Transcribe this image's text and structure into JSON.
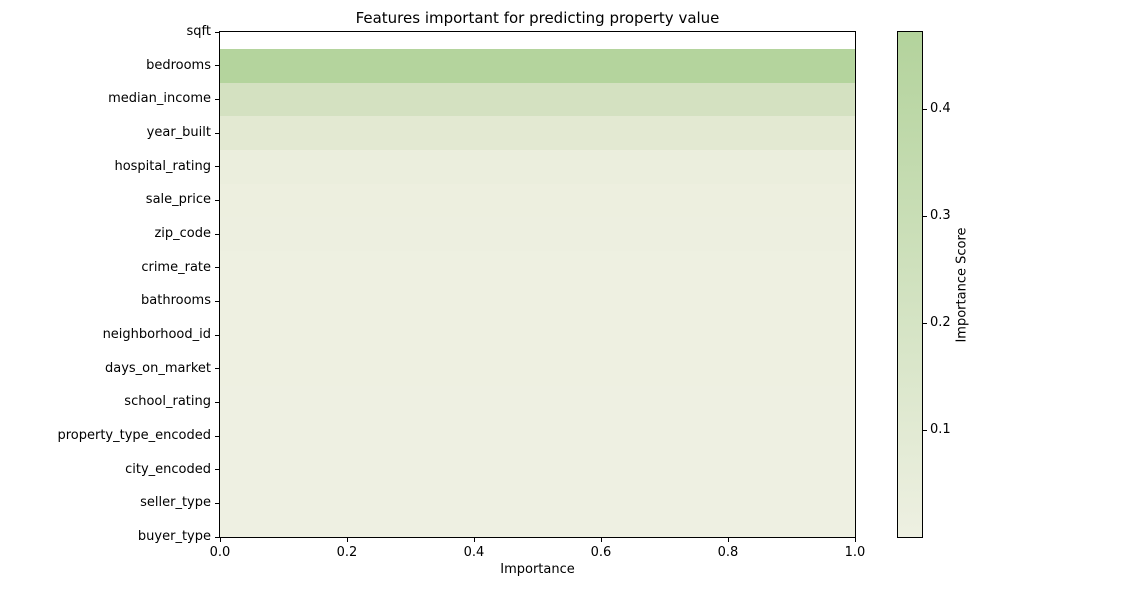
{
  "chart_data": {
    "type": "bar",
    "orientation": "horizontal",
    "title": "Features important for predicting property value",
    "xlabel": "Importance",
    "ylabel": "",
    "xlim": [
      0.0,
      1.0
    ],
    "x_ticks": [
      "0.0",
      "0.2",
      "0.4",
      "0.6",
      "0.8",
      "1.0"
    ],
    "grid": false,
    "legend": false,
    "note": "Every rendered bar spans the full x-range (0 to 1.0); feature importance is encoded by bar color. The sqft row is blank/white (no colored bar rendered).",
    "categories": [
      "sqft",
      "bedrooms",
      "median_income",
      "year_built",
      "hospital_rating",
      "sale_price",
      "zip_code",
      "crime_rate",
      "bathrooms",
      "neighborhood_id",
      "days_on_market",
      "school_rating",
      "property_type_encoded",
      "city_encoded",
      "seller_type",
      "buyer_type"
    ],
    "bar_lengths": [
      1.0,
      1.0,
      1.0,
      1.0,
      1.0,
      1.0,
      1.0,
      1.0,
      1.0,
      1.0,
      1.0,
      1.0,
      1.0,
      1.0,
      1.0,
      1.0
    ],
    "importance_scores": [
      null,
      0.46,
      0.21,
      0.09,
      0.03,
      0.015,
      0.012,
      0.01,
      0.009,
      0.008,
      0.008,
      0.007,
      0.006,
      0.006,
      0.005,
      0.005
    ],
    "bar_colors": [
      "#ffffff",
      "#b4d49d",
      "#d4e1c1",
      "#e3e9d2",
      "#ebeedd",
      "#edefdf",
      "#edefe0",
      "#eef0e1",
      "#eef0e1",
      "#eef0e1",
      "#eef0e1",
      "#eef0e2",
      "#eef0e2",
      "#eef0e2",
      "#eef0e2",
      "#eef0e2"
    ],
    "colorbar": {
      "label": "Importance Score",
      "ticks": [
        "0.1",
        "0.2",
        "0.3",
        "0.4"
      ],
      "vmin": 0.0,
      "vmax": 0.472,
      "top_color": "#b3d39c",
      "bottom_color": "#eef0e2"
    },
    "frame_color": "#000000",
    "text_color": "#000000",
    "background_color": "#ffffff"
  }
}
